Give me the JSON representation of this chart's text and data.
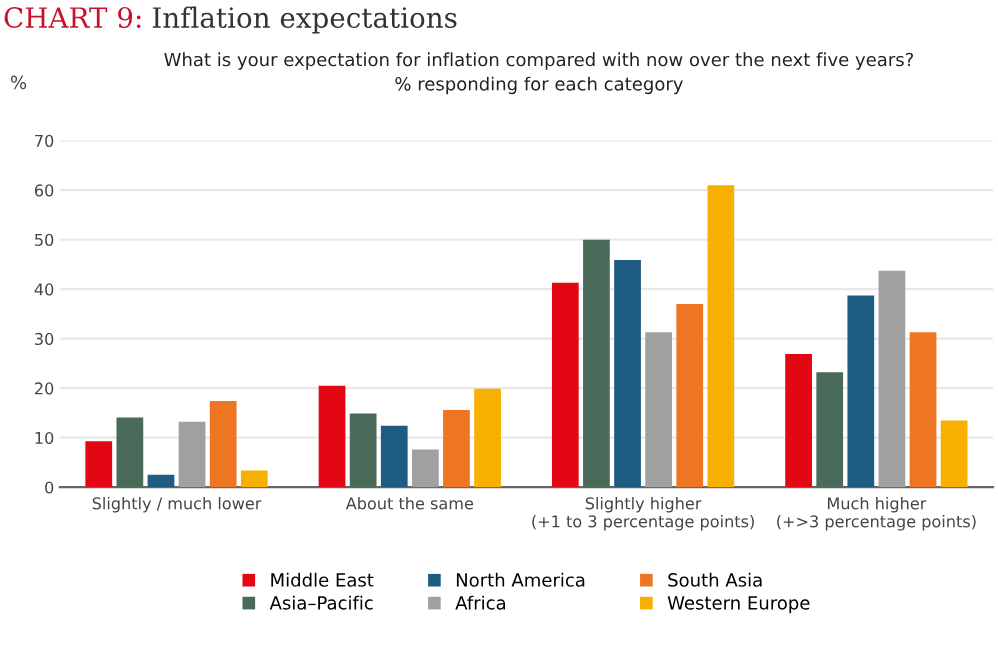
{
  "chart_data": {
    "type": "bar",
    "title": "CHART 9: Inflation expectations",
    "subtitle": "What is your expectation for inflation compared with now over the next five years?\n% responding for each category",
    "ylabel": "%",
    "categories": [
      "Slightly / much lower",
      "About the same",
      "Slightly higher\n(+1 to 3 percentage points)",
      "Much higher\n(+>3 percentage points)"
    ],
    "series": [
      {
        "name": "Middle East",
        "color": "#e30613",
        "values": [
          9.3,
          20.5,
          41.3,
          26.9
        ]
      },
      {
        "name": "Asia–Pacific",
        "color": "#4a6b5a",
        "values": [
          14.1,
          14.9,
          50,
          23.2
        ]
      },
      {
        "name": "North America",
        "color": "#1f5c82",
        "values": [
          2.5,
          12.4,
          45.9,
          38.7
        ]
      },
      {
        "name": "Africa",
        "color": "#a0a0a0",
        "values": [
          13.2,
          7.6,
          31.3,
          43.7
        ]
      },
      {
        "name": "South Asia",
        "color": "#ee7623",
        "values": [
          17.4,
          15.6,
          37,
          31.3
        ]
      },
      {
        "name": "Western Europe",
        "color": "#f7b000",
        "values": [
          3.4,
          19.9,
          61,
          13.5
        ]
      }
    ],
    "ylim": [
      0,
      70
    ],
    "yticks": [
      0,
      10,
      20,
      30,
      40,
      50,
      60,
      70
    ],
    "grid": "y",
    "legend": "bottom"
  }
}
